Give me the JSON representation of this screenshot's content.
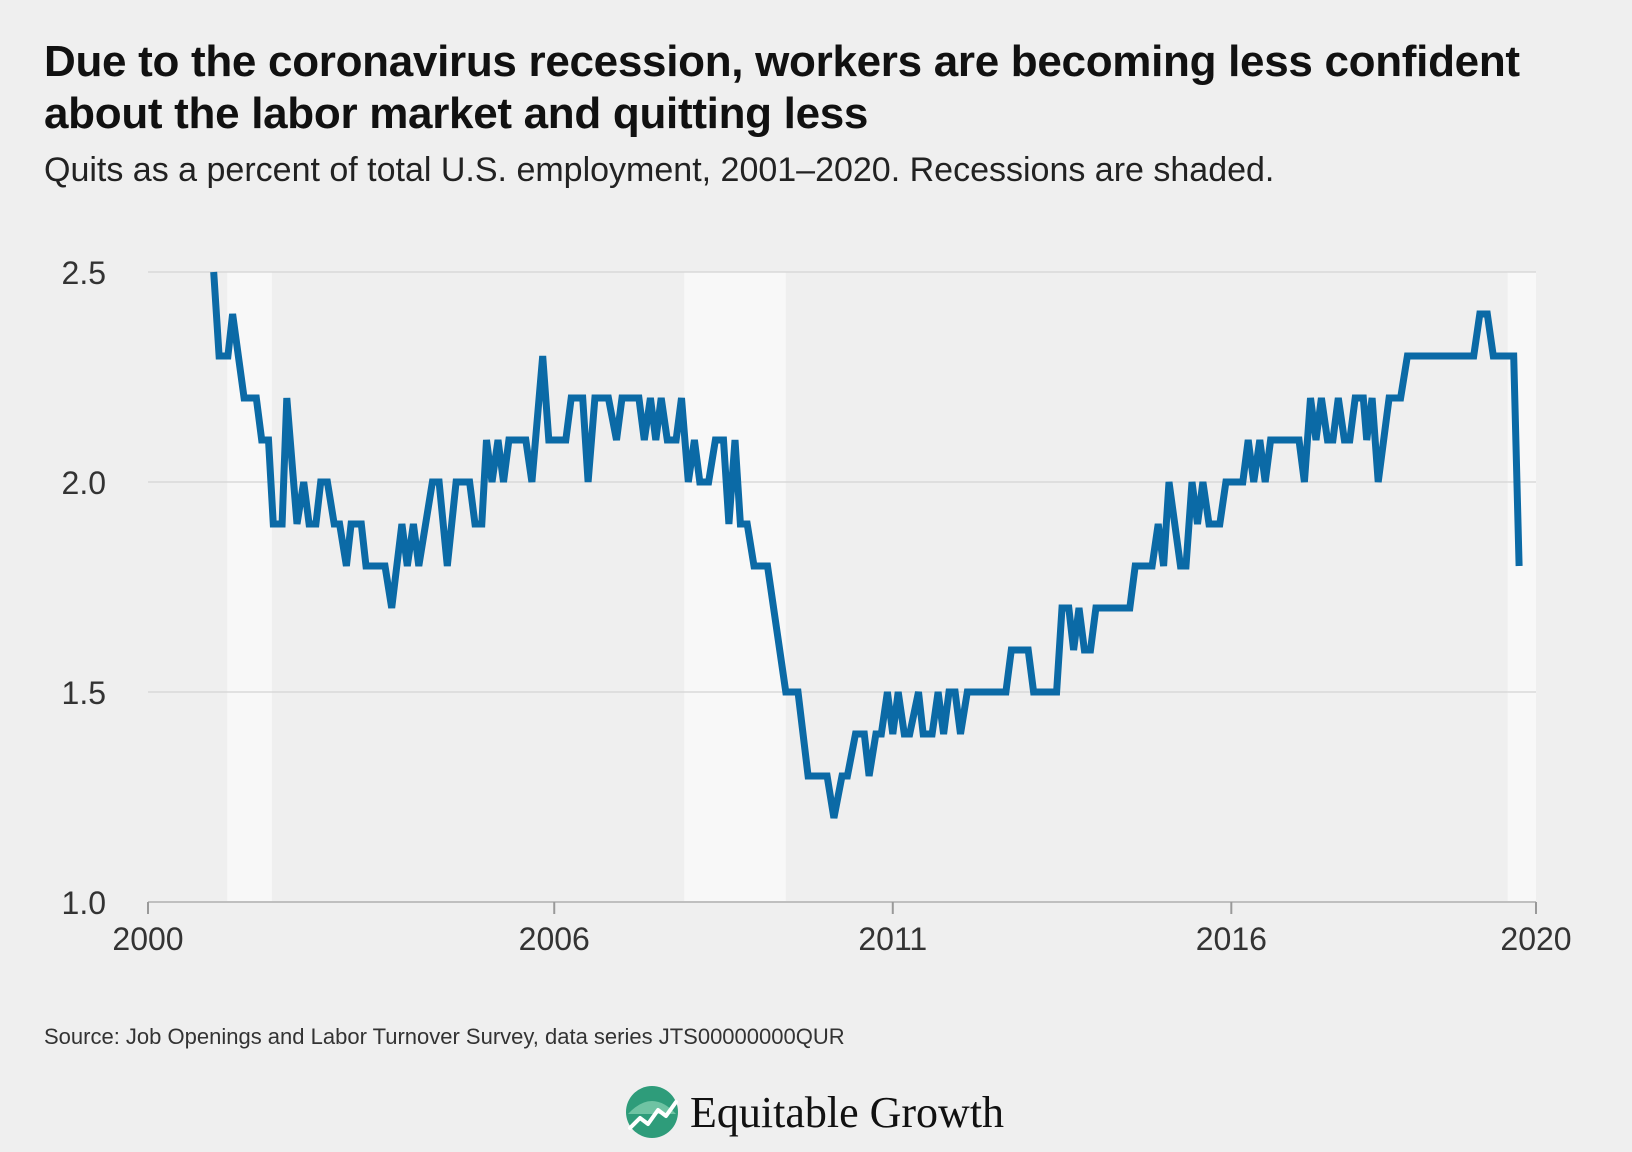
{
  "title": "Due to the coronavirus recession, workers are becoming less confident about the labor market and quitting less",
  "subtitle": "Quits as a percent of total U.S. employment, 2001–2020. Recessions are shaded.",
  "source": "Source: Job Openings and Labor Turnover Survey, data series JTS00000000QUR",
  "logo": {
    "text": "Equitable Growth",
    "icon": "leaf-chart-icon"
  },
  "colors": {
    "line": "#0b6aa6",
    "background": "#efefef",
    "recession": "#f8f8f8",
    "grid": "#d9d9d9",
    "logo_green": "#2e9c7a"
  },
  "chart_data": {
    "type": "line",
    "title": "",
    "xlabel": "",
    "ylabel": "",
    "xlim": [
      2000,
      2020.5
    ],
    "ylim": [
      1.0,
      2.5
    ],
    "grid": "horizontal",
    "y_ticks": [
      {
        "value": 1.0,
        "label": "1.0"
      },
      {
        "value": 1.5,
        "label": "1.5"
      },
      {
        "value": 2.0,
        "label": "2.0"
      },
      {
        "value": 2.5,
        "label": "2.5"
      }
    ],
    "x_ticks": [
      {
        "value": 2000,
        "label": "2000"
      },
      {
        "value": 2006,
        "label": "2006"
      },
      {
        "value": 2011,
        "label": "2011"
      },
      {
        "value": 2016,
        "label": "2016"
      },
      {
        "value": 2020.5,
        "label": "2020"
      }
    ],
    "recessions": [
      [
        2001.17,
        2001.83
      ],
      [
        2007.92,
        2009.42
      ],
      [
        2020.08,
        2020.5
      ]
    ],
    "series": [
      {
        "color": "#0b6aa6",
        "points": [
          [
            2000.97,
            2.5
          ],
          [
            2001.05,
            2.3
          ],
          [
            2001.18,
            2.3
          ],
          [
            2001.25,
            2.4
          ],
          [
            2001.42,
            2.2
          ],
          [
            2001.6,
            2.2
          ],
          [
            2001.68,
            2.1
          ],
          [
            2001.78,
            2.1
          ],
          [
            2001.85,
            1.9
          ],
          [
            2001.98,
            1.9
          ],
          [
            2002.05,
            2.2
          ],
          [
            2002.2,
            1.9
          ],
          [
            2002.3,
            2.0
          ],
          [
            2002.38,
            1.9
          ],
          [
            2002.48,
            1.9
          ],
          [
            2002.55,
            2.0
          ],
          [
            2002.65,
            2.0
          ],
          [
            2002.75,
            1.9
          ],
          [
            2002.83,
            1.9
          ],
          [
            2002.93,
            1.8
          ],
          [
            2003.0,
            1.9
          ],
          [
            2003.15,
            1.9
          ],
          [
            2003.22,
            1.8
          ],
          [
            2003.5,
            1.8
          ],
          [
            2003.6,
            1.7
          ],
          [
            2003.75,
            1.9
          ],
          [
            2003.83,
            1.8
          ],
          [
            2003.92,
            1.9
          ],
          [
            2004.0,
            1.8
          ],
          [
            2004.2,
            2.0
          ],
          [
            2004.3,
            2.0
          ],
          [
            2004.42,
            1.8
          ],
          [
            2004.55,
            2.0
          ],
          [
            2004.75,
            2.0
          ],
          [
            2004.83,
            1.9
          ],
          [
            2004.93,
            1.9
          ],
          [
            2005.0,
            2.1
          ],
          [
            2005.08,
            2.0
          ],
          [
            2005.17,
            2.1
          ],
          [
            2005.25,
            2.0
          ],
          [
            2005.33,
            2.1
          ],
          [
            2005.58,
            2.1
          ],
          [
            2005.67,
            2.0
          ],
          [
            2005.83,
            2.3
          ],
          [
            2005.92,
            2.1
          ],
          [
            2006.17,
            2.1
          ],
          [
            2006.25,
            2.2
          ],
          [
            2006.42,
            2.2
          ],
          [
            2006.5,
            2.0
          ],
          [
            2006.6,
            2.2
          ],
          [
            2006.8,
            2.2
          ],
          [
            2006.92,
            2.1
          ],
          [
            2007.0,
            2.2
          ],
          [
            2007.25,
            2.2
          ],
          [
            2007.33,
            2.1
          ],
          [
            2007.42,
            2.2
          ],
          [
            2007.5,
            2.1
          ],
          [
            2007.58,
            2.2
          ],
          [
            2007.67,
            2.1
          ],
          [
            2007.8,
            2.1
          ],
          [
            2007.88,
            2.2
          ],
          [
            2007.98,
            2.0
          ],
          [
            2008.07,
            2.1
          ],
          [
            2008.15,
            2.0
          ],
          [
            2008.28,
            2.0
          ],
          [
            2008.38,
            2.1
          ],
          [
            2008.5,
            2.1
          ],
          [
            2008.58,
            1.9
          ],
          [
            2008.67,
            2.1
          ],
          [
            2008.75,
            1.9
          ],
          [
            2008.85,
            1.9
          ],
          [
            2008.95,
            1.8
          ],
          [
            2009.15,
            1.8
          ],
          [
            2009.42,
            1.5
          ],
          [
            2009.6,
            1.5
          ],
          [
            2009.75,
            1.3
          ],
          [
            2010.03,
            1.3
          ],
          [
            2010.13,
            1.2
          ],
          [
            2010.25,
            1.3
          ],
          [
            2010.33,
            1.3
          ],
          [
            2010.45,
            1.4
          ],
          [
            2010.58,
            1.4
          ],
          [
            2010.65,
            1.3
          ],
          [
            2010.75,
            1.4
          ],
          [
            2010.83,
            1.4
          ],
          [
            2010.92,
            1.5
          ],
          [
            2011.0,
            1.4
          ],
          [
            2011.08,
            1.5
          ],
          [
            2011.17,
            1.4
          ],
          [
            2011.25,
            1.4
          ],
          [
            2011.38,
            1.5
          ],
          [
            2011.45,
            1.4
          ],
          [
            2011.58,
            1.4
          ],
          [
            2011.67,
            1.5
          ],
          [
            2011.75,
            1.4
          ],
          [
            2011.83,
            1.5
          ],
          [
            2011.92,
            1.5
          ],
          [
            2012.0,
            1.4
          ],
          [
            2012.1,
            1.5
          ],
          [
            2012.67,
            1.5
          ],
          [
            2012.75,
            1.6
          ],
          [
            2013.0,
            1.6
          ],
          [
            2013.08,
            1.5
          ],
          [
            2013.42,
            1.5
          ],
          [
            2013.5,
            1.7
          ],
          [
            2013.6,
            1.7
          ],
          [
            2013.67,
            1.6
          ],
          [
            2013.75,
            1.7
          ],
          [
            2013.83,
            1.6
          ],
          [
            2013.92,
            1.6
          ],
          [
            2014.0,
            1.7
          ],
          [
            2014.5,
            1.7
          ],
          [
            2014.58,
            1.8
          ],
          [
            2014.83,
            1.8
          ],
          [
            2014.92,
            1.9
          ],
          [
            2015.0,
            1.8
          ],
          [
            2015.08,
            2.0
          ],
          [
            2015.25,
            1.8
          ],
          [
            2015.33,
            1.8
          ],
          [
            2015.42,
            2.0
          ],
          [
            2015.5,
            1.9
          ],
          [
            2015.58,
            2.0
          ],
          [
            2015.67,
            1.9
          ],
          [
            2015.83,
            1.9
          ],
          [
            2015.92,
            2.0
          ],
          [
            2016.17,
            2.0
          ],
          [
            2016.25,
            2.1
          ],
          [
            2016.33,
            2.0
          ],
          [
            2016.42,
            2.1
          ],
          [
            2016.5,
            2.0
          ],
          [
            2016.58,
            2.1
          ],
          [
            2017.0,
            2.1
          ],
          [
            2017.08,
            2.0
          ],
          [
            2017.17,
            2.2
          ],
          [
            2017.25,
            2.1
          ],
          [
            2017.33,
            2.2
          ],
          [
            2017.42,
            2.1
          ],
          [
            2017.5,
            2.1
          ],
          [
            2017.58,
            2.2
          ],
          [
            2017.67,
            2.1
          ],
          [
            2017.75,
            2.1
          ],
          [
            2017.83,
            2.2
          ],
          [
            2017.95,
            2.2
          ],
          [
            2018.0,
            2.1
          ],
          [
            2018.08,
            2.2
          ],
          [
            2018.17,
            2.0
          ],
          [
            2018.33,
            2.2
          ],
          [
            2018.5,
            2.2
          ],
          [
            2018.6,
            2.3
          ],
          [
            2019.58,
            2.3
          ],
          [
            2019.67,
            2.4
          ],
          [
            2019.78,
            2.4
          ],
          [
            2019.87,
            2.3
          ],
          [
            2020.17,
            2.3
          ],
          [
            2020.25,
            1.8
          ]
        ]
      }
    ]
  }
}
